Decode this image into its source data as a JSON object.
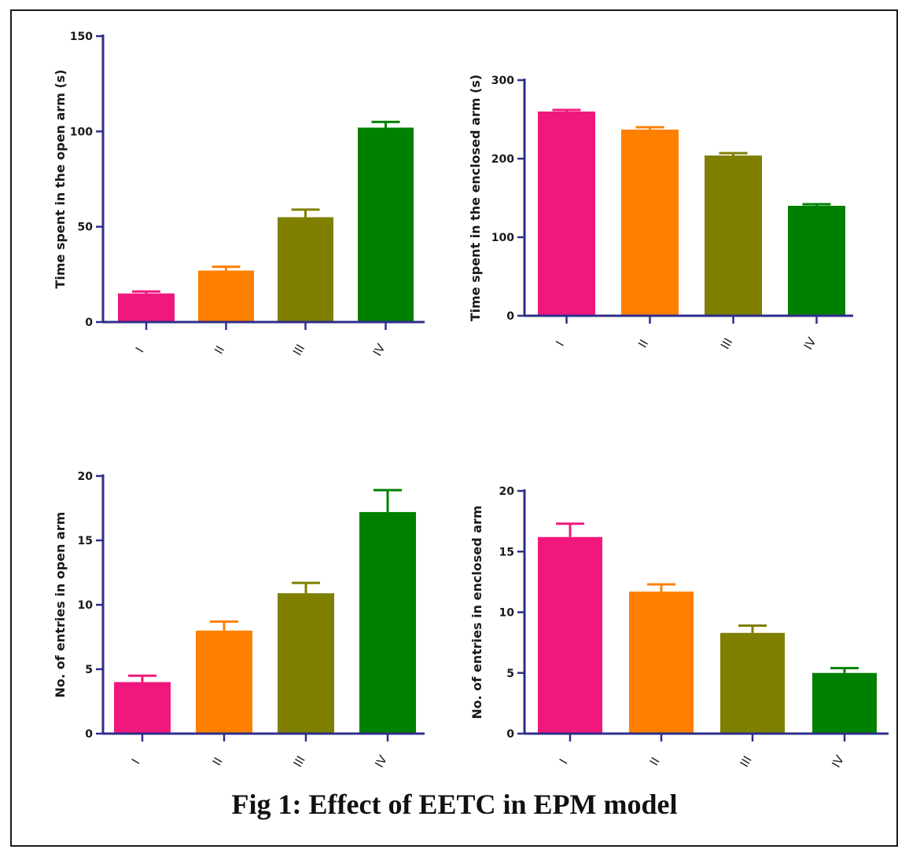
{
  "caption": "Fig 1: Effect of EETC  in EPM model",
  "colors": {
    "I": "#f0187c",
    "II": "#ff7f00",
    "III": "#7f7f00",
    "IV": "#008000",
    "axis": "#2e2e8a"
  },
  "chart_data": [
    {
      "type": "bar",
      "categories": [
        "I",
        "II",
        "III",
        "IV"
      ],
      "values": [
        15,
        27,
        55,
        102
      ],
      "errors": [
        1,
        2,
        4,
        3
      ],
      "ylabel": "Time spent in the open arm (s)",
      "ylim": [
        0,
        150
      ],
      "yticks": [
        0,
        50,
        100,
        150
      ],
      "grid": false
    },
    {
      "type": "bar",
      "categories": [
        "I",
        "II",
        "III",
        "IV"
      ],
      "values": [
        260,
        237,
        204,
        140
      ],
      "errors": [
        2,
        3,
        3,
        2
      ],
      "ylabel": "Time spent in the enclosed arm (s)",
      "ylim": [
        0,
        300
      ],
      "yticks": [
        0,
        100,
        200,
        300
      ],
      "grid": false
    },
    {
      "type": "bar",
      "categories": [
        "I",
        "II",
        "III",
        "IV"
      ],
      "values": [
        4,
        8,
        10.9,
        17.2
      ],
      "errors": [
        0.5,
        0.7,
        0.8,
        1.7
      ],
      "ylabel": "No. of entries in open arm",
      "ylim": [
        0,
        20
      ],
      "yticks": [
        0,
        5,
        10,
        15,
        20
      ],
      "grid": false
    },
    {
      "type": "bar",
      "categories": [
        "I",
        "II",
        "III",
        "IV"
      ],
      "values": [
        16.2,
        11.7,
        8.3,
        5
      ],
      "errors": [
        1.1,
        0.6,
        0.6,
        0.4
      ],
      "ylabel": "No. of entries in enclosed arm",
      "ylim": [
        0,
        20
      ],
      "yticks": [
        0,
        5,
        10,
        15,
        20
      ],
      "grid": false
    }
  ]
}
